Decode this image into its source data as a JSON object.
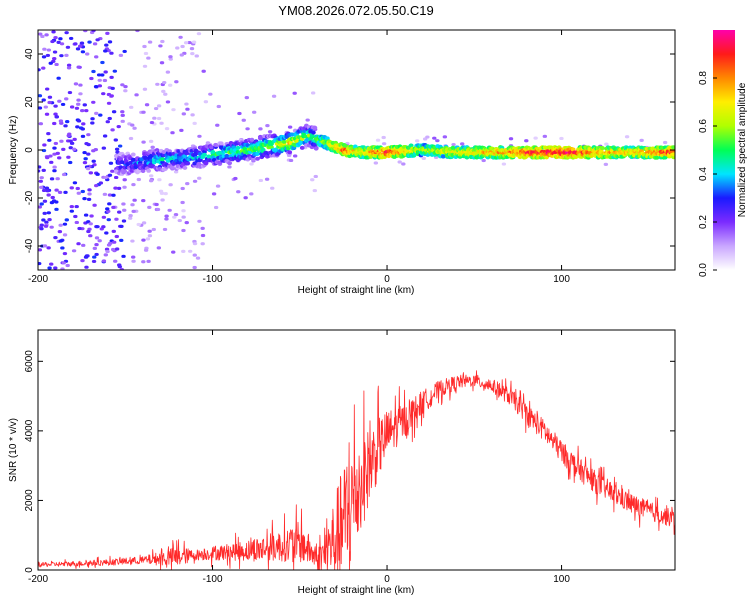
{
  "title": "YM08.2026.072.05.50.C19",
  "chart_data": [
    {
      "type": "heatmap",
      "title": "YM08.2026.072.05.50.C19",
      "xlabel": "Height of straight line (km)",
      "ylabel": "Frequency (Hz)",
      "xlim": [
        -200,
        165
      ],
      "ylim": [
        -50,
        50
      ],
      "x_ticks": [
        "-200",
        "-100",
        "0",
        "100"
      ],
      "y_ticks": [
        "-40",
        "-20",
        "0",
        "20",
        "40"
      ],
      "colorbar": {
        "label": "Normalized spectral amplitude",
        "range": [
          0,
          1
        ],
        "ticks": [
          "0.0",
          "0.2",
          "0.4",
          "0.6",
          "0.8"
        ],
        "colors": [
          "#ffffff",
          "#c9a6ff",
          "#7b2bff",
          "#1a1aff",
          "#00e5ff",
          "#00ff55",
          "#b0ff00",
          "#ffee00",
          "#ff8800",
          "#ff1a1a",
          "#ff00aa"
        ]
      },
      "ridge": [
        {
          "x": -150,
          "f": -6,
          "amp": 0.3
        },
        {
          "x": -130,
          "f": -4,
          "amp": 0.45
        },
        {
          "x": -110,
          "f": -3,
          "amp": 0.4
        },
        {
          "x": -100,
          "f": -2,
          "amp": 0.5
        },
        {
          "x": -80,
          "f": 0,
          "amp": 0.55
        },
        {
          "x": -65,
          "f": 2,
          "amp": 0.6
        },
        {
          "x": -55,
          "f": 3,
          "amp": 0.75
        },
        {
          "x": -45,
          "f": 6,
          "amp": 0.55
        },
        {
          "x": -35,
          "f": 3,
          "amp": 0.6
        },
        {
          "x": -25,
          "f": 0,
          "amp": 0.85
        },
        {
          "x": -15,
          "f": -1,
          "amp": 0.7
        },
        {
          "x": 0,
          "f": -1,
          "amp": 0.95
        },
        {
          "x": 20,
          "f": 0,
          "amp": 0.6
        },
        {
          "x": 40,
          "f": -1,
          "amp": 0.7
        },
        {
          "x": 60,
          "f": -1,
          "amp": 0.75
        },
        {
          "x": 80,
          "f": -1,
          "amp": 0.9
        },
        {
          "x": 100,
          "f": -1,
          "amp": 1.0
        },
        {
          "x": 120,
          "f": -1,
          "amp": 0.8
        },
        {
          "x": 140,
          "f": -1,
          "amp": 0.75
        },
        {
          "x": 165,
          "f": -1,
          "amp": 0.9
        }
      ]
    },
    {
      "type": "line",
      "xlabel": "Height of straight line (km)",
      "ylabel": "SNR (10 * v/v)",
      "xlim": [
        -200,
        165
      ],
      "ylim": [
        0,
        6900
      ],
      "x_ticks": [
        "-200",
        "-100",
        "0",
        "100"
      ],
      "y_ticks": [
        "0",
        "2000",
        "4000",
        "6000"
      ],
      "color": "#ff2a2a",
      "envelope": {
        "x": [
          -200,
          -180,
          -160,
          -140,
          -130,
          -120,
          -110,
          -100,
          -90,
          -80,
          -70,
          -60,
          -50,
          -45,
          -40,
          -35,
          -30,
          -25,
          -22,
          -20,
          -15,
          -10,
          -5,
          0,
          10,
          20,
          30,
          40,
          50,
          60,
          70,
          80,
          90,
          100,
          110,
          120,
          130,
          140,
          150,
          165
        ],
        "center": [
          150,
          180,
          220,
          280,
          330,
          380,
          430,
          480,
          520,
          560,
          620,
          700,
          800,
          600,
          300,
          500,
          900,
          1300,
          1600,
          2000,
          2500,
          3000,
          3500,
          3900,
          4300,
          4800,
          5200,
          5400,
          5450,
          5300,
          5000,
          4500,
          4000,
          3400,
          2900,
          2500,
          2200,
          1900,
          1700,
          1450
        ],
        "spread": [
          120,
          150,
          180,
          220,
          400,
          600,
          300,
          400,
          500,
          600,
          800,
          900,
          1200,
          900,
          600,
          1500,
          2500,
          3500,
          4500,
          3500,
          2800,
          2200,
          1800,
          1400,
          1000,
          700,
          500,
          400,
          350,
          400,
          500,
          600,
          650,
          650,
          650,
          650,
          600,
          600,
          550,
          500
        ]
      }
    }
  ]
}
